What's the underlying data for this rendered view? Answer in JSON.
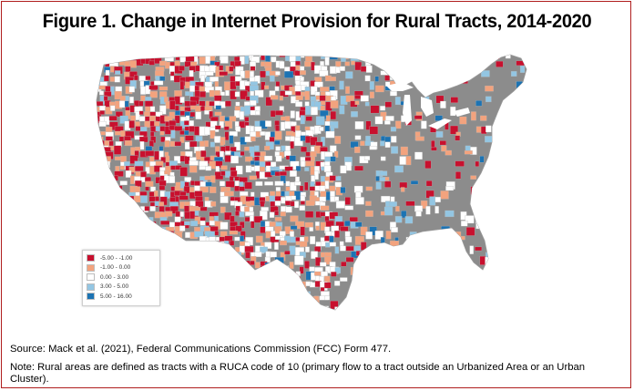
{
  "title": "Figure 1. Change in Internet Provision for Rural Tracts, 2014-2020",
  "legend": {
    "items": [
      {
        "label": "-5.00 - -1.00",
        "color": "#c8102e"
      },
      {
        "label": "-1.00 - 0.00",
        "color": "#f3a37e"
      },
      {
        "label": "0.00 - 3.00",
        "color": "#ffffff"
      },
      {
        "label": "3.00 - 5.00",
        "color": "#93c6e3"
      },
      {
        "label": "5.00 - 16.00",
        "color": "#1c73b3"
      }
    ]
  },
  "source_text": "Source: Mack et al. (2021), Federal Communications Commission (FCC) Form 477.",
  "note_text": "Note: Rural areas are defined as tracts with a RUCA code of 10 (primary flow to a tract outside an Urbanized Area or an Urban Cluster).",
  "colors": {
    "non_rural": "#8c8c8c",
    "frame_border": "#b01e1e"
  }
}
